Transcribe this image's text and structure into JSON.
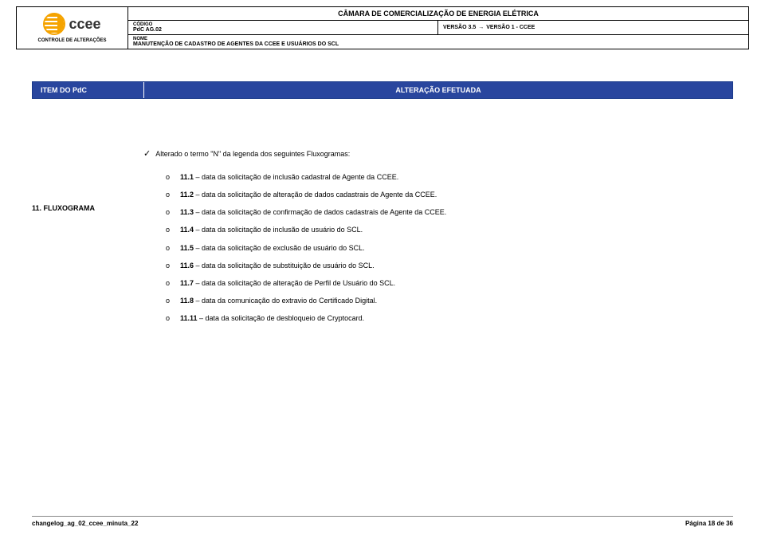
{
  "header": {
    "org_title": "CÂMARA DE COMERCIALIZAÇÃO DE ENERGIA ELÉTRICA",
    "logo_text": "ccee",
    "controle_label": "CONTROLE DE ALTERAÇÕES",
    "codigo_label": "CÓDIGO",
    "codigo_value": "PdC AG.02",
    "versao_from": "VERSÃO 3.5",
    "versao_to": "VERSÃO 1 - CCEE",
    "nome_label": "NOME",
    "nome_value": "MANUTENÇÃO DE CADASTRO DE AGENTES DA CCEE E USUÁRIOS DO SCL"
  },
  "bluebar": {
    "left": "ITEM DO PdC",
    "right": "ALTERAÇÃO EFETUADA"
  },
  "section": {
    "label": "11. FLUXOGRAMA",
    "lead": "Alterado o termo \"N\" da legenda dos seguintes Fluxogramas:",
    "items": [
      {
        "num": "11.1",
        "text": " – data da solicitação de inclusão cadastral de Agente da CCEE."
      },
      {
        "num": "11.2",
        "text": " – data da solicitação de alteração de dados cadastrais de Agente da CCEE."
      },
      {
        "num": "11.3",
        "text": " – data da solicitação de confirmação de dados cadastrais de Agente da CCEE."
      },
      {
        "num": "11.4",
        "text": " – data da solicitação de inclusão de usuário do SCL."
      },
      {
        "num": "11.5",
        "text": " – data da solicitação de exclusão de usuário do SCL."
      },
      {
        "num": "11.6",
        "text": " – data da solicitação de substituição de usuário do SCL."
      },
      {
        "num": "11.7",
        "text": " – data da solicitação de alteração de Perfil de Usuário do SCL."
      },
      {
        "num": "11.8",
        "text": " – data da comunicação do extravio do Certificado Digital."
      },
      {
        "num": "11.11",
        "text": " – data da solicitação de desbloqueio de Cryptocard."
      }
    ]
  },
  "footer": {
    "left": "changelog_ag_02_ccee_minuta_22",
    "right": "Página 18 de 36"
  },
  "colors": {
    "blue": "#29469e",
    "orange": "#f5a300",
    "text": "#000000",
    "white": "#ffffff"
  }
}
